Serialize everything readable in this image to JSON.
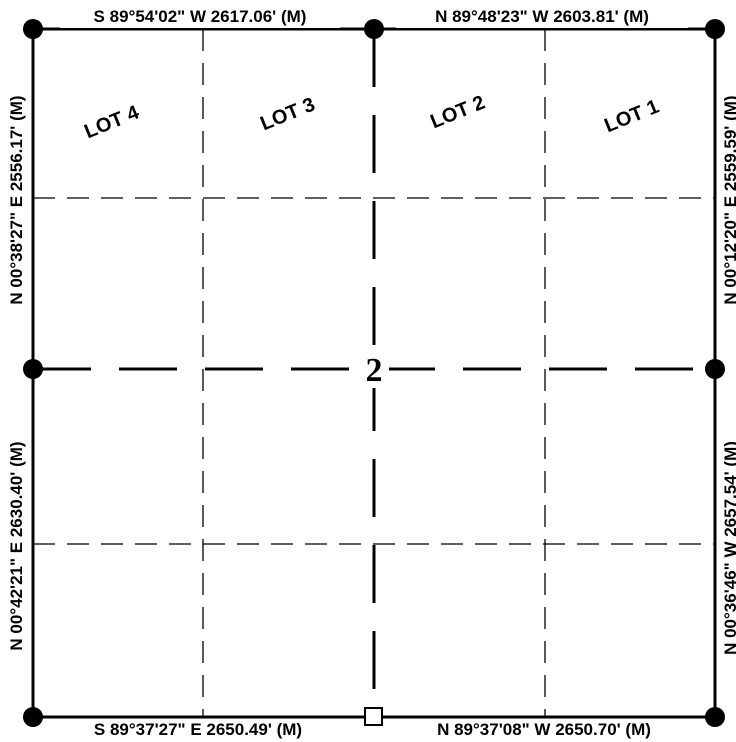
{
  "section_number": "2",
  "calls": {
    "north_west": "S 89°54'02\" W  2617.06' (M)",
    "north_east": "N 89°48'23\" W  2603.81' (M)",
    "south_west": "S 89°37'27\" E  2650.49' (M)",
    "south_east": "N 89°37'08\" W  2650.70' (M)",
    "west_north": "N 00°38'27\" E  2556.17' (M)",
    "west_south": "N 00°42'21\" E  2630.40' (M)",
    "east_north": "N 00°12'20\" E  2559.59' (M)",
    "east_south": "N 00°36'46\" W  2657.54' (M)"
  },
  "lots": [
    "LOT 4",
    "LOT 3",
    "LOT 2",
    "LOT 1"
  ],
  "monuments": {
    "found": "filled-circle-icon",
    "set": "open-square-icon"
  }
}
